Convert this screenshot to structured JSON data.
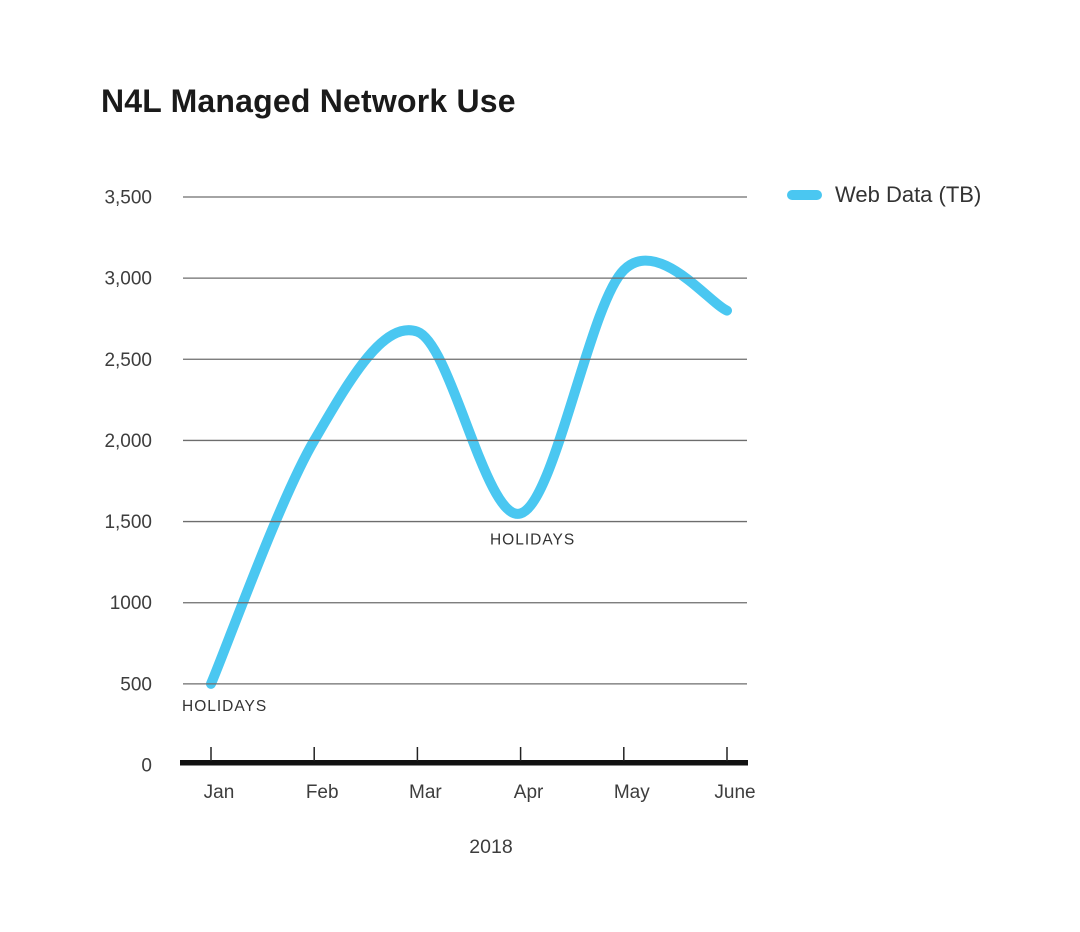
{
  "title": "N4L Managed Network Use",
  "legend": {
    "label": "Web Data (TB)",
    "color": "#4AC7F1"
  },
  "x_axis_label": "2018",
  "chart_data": {
    "type": "line",
    "x": [
      "Jan",
      "Feb",
      "Mar",
      "Apr",
      "May",
      "June"
    ],
    "series": [
      {
        "name": "Web Data (TB)",
        "values": [
          500,
          2000,
          2670,
          1550,
          3050,
          2800
        ]
      }
    ],
    "title": "N4L Managed Network Use",
    "xlabel": "2018",
    "ylabel": "",
    "ylim": [
      0,
      3500
    ],
    "y_ticks": [
      0,
      500,
      1000,
      1500,
      2000,
      2500,
      3000,
      3500
    ],
    "y_tick_labels": [
      "0",
      "500",
      "1000",
      "1,500",
      "2,000",
      "2,500",
      "3,000",
      "3,500"
    ],
    "grid": "horizontal",
    "legend_position": "top-right",
    "line_color": "#4AC7F1",
    "gridline_color": "#6d6d6d",
    "axis_color": "#111111",
    "curve": "smooth",
    "annotations": [
      {
        "text": "HOLIDAYS",
        "month": "Jan",
        "value": 500
      },
      {
        "text": "HOLIDAYS",
        "month": "Apr",
        "value": 1550
      }
    ]
  }
}
